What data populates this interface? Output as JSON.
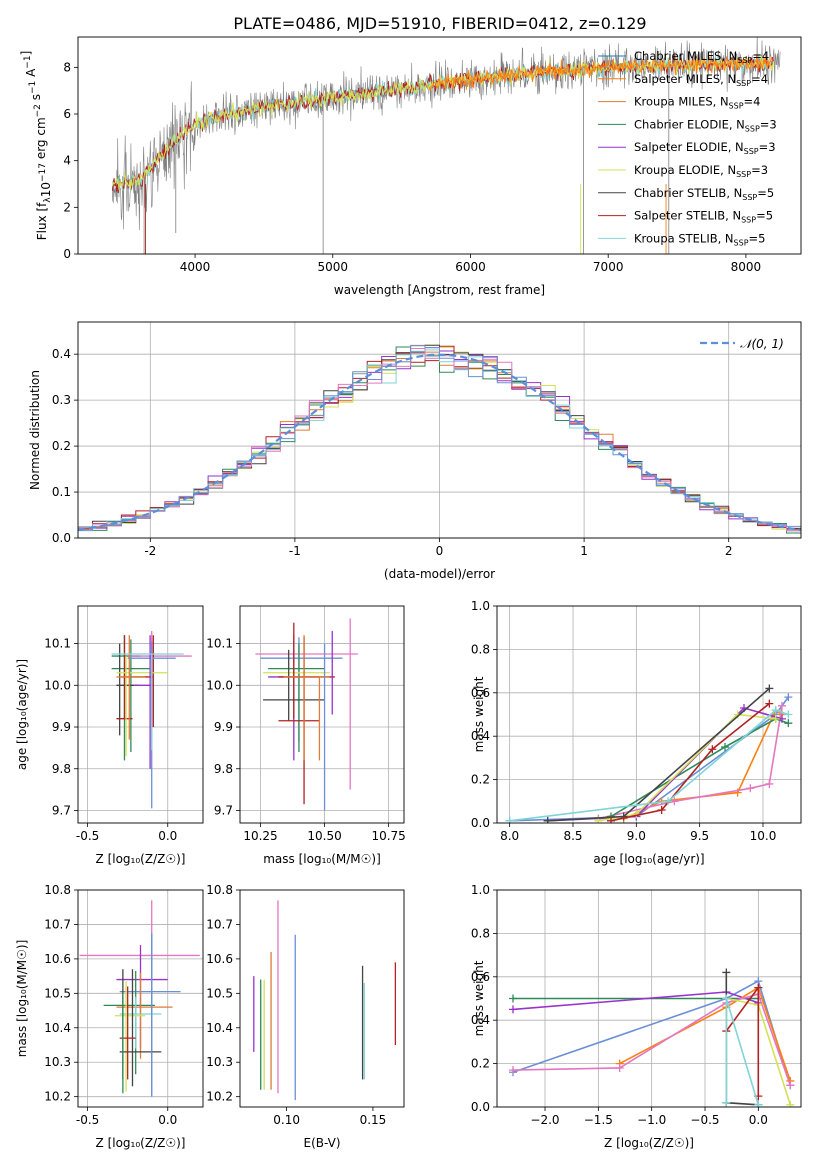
{
  "figure_title": "PLATE=0486, MJD=51910, FIBERID=0412, z=0.129",
  "colors": {
    "Chabrier MILES": "#1f77b4",
    "Salpeter MILES": "#ff7f0e",
    "Kroupa MILES": "#e07b39",
    "Chabrier ELODIE": "#2e8b57",
    "Salpeter ELODIE": "#9932cc",
    "Kroupa ELODIE": "#d4e157",
    "Chabrier STELIB": "#444444",
    "Salpeter STELIB": "#b22222",
    "Kroupa STELIB": "#7fd4d8",
    "extra_pink": "#e377c2",
    "extra_blue": "#6b8fd6",
    "data": "#808080",
    "normal": "#5b8fd9"
  },
  "chart_data": [
    {
      "id": "spectrum",
      "type": "line",
      "xlabel": "wavelength [Angstrom, rest frame]",
      "ylabel": "Flux [f_λ 10^-17 erg cm^-2 s^-1 A^-1]",
      "xlim": [
        3150,
        8400
      ],
      "ylim": [
        0,
        9.3
      ],
      "xticks": [
        4000,
        5000,
        6000,
        7000,
        8000
      ],
      "yticks": [
        0,
        2,
        4,
        6,
        8
      ],
      "legend_position": "top-right",
      "legend": [
        {
          "label": "Chabrier MILES, N_SSP=4",
          "color": "#1f77b4"
        },
        {
          "label": "Salpeter MILES, N_SSP=4",
          "color": "#ff7f0e"
        },
        {
          "label": "Kroupa MILES, N_SSP=4",
          "color": "#e07b39"
        },
        {
          "label": "Chabrier ELODIE, N_SSP=3",
          "color": "#2e8b57"
        },
        {
          "label": "Salpeter ELODIE, N_SSP=3",
          "color": "#9932cc"
        },
        {
          "label": "Kroupa ELODIE, N_SSP=3",
          "color": "#d4e157"
        },
        {
          "label": "Chabrier STELIB, N_SSP=5",
          "color": "#444444"
        },
        {
          "label": "Salpeter STELIB, N_SSP=5",
          "color": "#b22222"
        },
        {
          "label": "Kroupa STELIB, N_SSP=5",
          "color": "#7fd4d8"
        }
      ],
      "continuum": {
        "x": [
          3400,
          3600,
          3800,
          4000,
          4200,
          4500,
          5000,
          5500,
          6000,
          6500,
          7000,
          7500,
          8000,
          8200
        ],
        "y": [
          3.0,
          3.2,
          4.5,
          5.6,
          6.0,
          6.3,
          6.7,
          7.1,
          7.5,
          7.8,
          8.0,
          8.1,
          8.2,
          8.2
        ]
      }
    },
    {
      "id": "residuals",
      "type": "histogram",
      "xlabel": "(data-model)/error",
      "ylabel": "Normed distribution",
      "xlim": [
        -2.5,
        2.5
      ],
      "ylim": [
        0,
        0.47
      ],
      "xticks": [
        -2,
        -1,
        0,
        1,
        2
      ],
      "yticks": [
        0.0,
        0.1,
        0.2,
        0.3,
        0.4
      ],
      "grid": true,
      "legend_position": "top-right",
      "legend": [
        {
          "label": "𝒩(0, 1)",
          "color": "#5b8fd9",
          "style": "dashed"
        }
      ],
      "bin_width": 0.1
    },
    {
      "id": "age_vs_Z",
      "type": "errorbar",
      "xlabel": "Z [log10(Z/Z☉)]",
      "ylabel": "age  [log10(age/yr)]",
      "xlim": [
        -0.56,
        0.22
      ],
      "ylim": [
        9.67,
        10.19
      ],
      "xticks": [
        -0.5,
        0.0
      ],
      "xtick_labels": [
        "-0.5",
        "0.0"
      ],
      "yticks": [
        9.7,
        9.8,
        9.9,
        10.0,
        10.1
      ],
      "grid": true,
      "points": [
        {
          "x": -0.27,
          "xerr": [
            0.08,
            0.1
          ],
          "y": 10.07,
          "yerr": [
            0.25,
            0.05
          ],
          "color": "#2e8b57"
        },
        {
          "x": -0.23,
          "xerr": [
            0.12,
            0.12
          ],
          "y": 10.04,
          "yerr": [
            0.2,
            0.07
          ],
          "color": "#2e8b57"
        },
        {
          "x": -0.3,
          "xerr": [
            0.02,
            0.12
          ],
          "y": 10.0,
          "yerr": [
            0.12,
            0.1
          ],
          "color": "#444444"
        },
        {
          "x": -0.27,
          "xerr": [
            0.05,
            0.05
          ],
          "y": 9.92,
          "yerr": [
            0.0,
            0.2
          ],
          "color": "#b22222"
        },
        {
          "x": -0.1,
          "xerr": [
            0.14,
            0.25
          ],
          "y": 10.07,
          "yerr": [
            0.13,
            0.06
          ],
          "color": "#e377c2"
        },
        {
          "x": -0.09,
          "xerr": [
            0.2,
            0.0
          ],
          "y": 10.02,
          "yerr": [
            0.12,
            0.1
          ],
          "color": "#b22222"
        }
      ]
    },
    {
      "id": "age_vs_mass",
      "type": "errorbar",
      "xlabel": "mass [log10(M/M☉)]",
      "ylabel": "",
      "xlim": [
        10.17,
        10.81
      ],
      "ylim": [
        9.67,
        10.19
      ],
      "xticks": [
        10.25,
        10.5,
        10.75
      ],
      "xtick_labels": [
        "10.25",
        "10.50",
        "10.75"
      ],
      "yticks": [
        9.7,
        9.8,
        9.9,
        10.0,
        10.1
      ],
      "grid": true
    },
    {
      "id": "massweight_vs_age",
      "type": "line",
      "xlabel": "age  [log10(age/yr)]",
      "ylabel": "mass weight",
      "xlim": [
        7.9,
        10.3
      ],
      "ylim": [
        0,
        1
      ],
      "xticks": [
        8.0,
        8.5,
        9.0,
        9.5,
        10.0
      ],
      "xtick_labels": [
        "8.0",
        "8.5",
        "9.0",
        "9.5",
        "10.0"
      ],
      "yticks": [
        0.0,
        0.2,
        0.4,
        0.6,
        0.8,
        1.0
      ],
      "grid": true,
      "series": [
        {
          "x": [
            8.0,
            9.0,
            10.1,
            10.2
          ],
          "y": [
            0.01,
            0.03,
            0.5,
            0.58
          ],
          "color": "#6b8fd6"
        },
        {
          "x": [
            8.9,
            9.2,
            9.8,
            10.1,
            10.15
          ],
          "y": [
            0.02,
            0.1,
            0.14,
            0.52,
            0.5
          ],
          "color": "#ff7f0e"
        },
        {
          "x": [
            8.7,
            9.3,
            9.9,
            10.05,
            10.15
          ],
          "y": [
            0.02,
            0.1,
            0.16,
            0.18,
            0.54
          ],
          "color": "#e377c2"
        },
        {
          "x": [
            8.8,
            9.7,
            10.1,
            10.2
          ],
          "y": [
            0.03,
            0.35,
            0.48,
            0.46
          ],
          "color": "#2e8b57"
        },
        {
          "x": [
            8.3,
            9.0,
            9.85,
            10.15
          ],
          "y": [
            0.01,
            0.03,
            0.53,
            0.48
          ],
          "color": "#9932cc"
        },
        {
          "x": [
            8.7,
            9.0,
            9.8,
            10.1
          ],
          "y": [
            0.01,
            0.04,
            0.5,
            0.48
          ],
          "color": "#d4e157"
        },
        {
          "x": [
            8.3,
            8.9,
            10.05
          ],
          "y": [
            0.01,
            0.03,
            0.62
          ],
          "color": "#444444"
        },
        {
          "x": [
            8.8,
            9.2,
            9.6,
            10.05
          ],
          "y": [
            0.01,
            0.06,
            0.34,
            0.55
          ],
          "color": "#b22222"
        },
        {
          "x": [
            8.0,
            9.25,
            10.1,
            10.2
          ],
          "y": [
            0.01,
            0.1,
            0.52,
            0.5
          ],
          "color": "#7fd4d8"
        }
      ]
    },
    {
      "id": "mass_vs_Z",
      "type": "errorbar",
      "xlabel": "Z [log10(Z/Z☉)]",
      "ylabel": "mass [log10(M/M☉)]",
      "xlim": [
        -0.56,
        0.22
      ],
      "ylim": [
        10.17,
        10.8
      ],
      "xticks": [
        -0.5,
        0.0
      ],
      "xtick_labels": [
        "-0.5",
        "0.0"
      ],
      "yticks": [
        10.2,
        10.3,
        10.4,
        10.5,
        10.6,
        10.7,
        10.8
      ],
      "grid": true
    },
    {
      "id": "mass_vs_EBV",
      "type": "errorbar",
      "xlabel": "E(B-V)",
      "ylabel": "",
      "xlim": [
        0.073,
        0.168
      ],
      "ylim": [
        10.17,
        10.8
      ],
      "xticks": [
        0.1,
        0.15
      ],
      "xtick_labels": [
        "0.10",
        "0.15"
      ],
      "yticks": [
        10.2,
        10.3,
        10.4,
        10.5,
        10.6,
        10.7,
        10.8
      ],
      "grid": false
    },
    {
      "id": "massweight_vs_Z",
      "type": "line",
      "xlabel": "Z [log10(Z/Z☉)]",
      "ylabel": "mass weight",
      "xlim": [
        -2.45,
        0.4
      ],
      "ylim": [
        0,
        1
      ],
      "xticks": [
        -2.0,
        -1.5,
        -1.0,
        -0.5,
        0.0
      ],
      "xtick_labels": [
        "−2.0",
        "−1.5",
        "−1.0",
        "−0.5",
        "0.0"
      ],
      "yticks": [
        0.0,
        0.2,
        0.4,
        0.6,
        0.8,
        1.0
      ],
      "grid": true,
      "series": [
        {
          "x": [
            -2.3,
            -0.3,
            0.0,
            0.3
          ],
          "y": [
            0.16,
            0.5,
            0.58,
            0.1
          ],
          "color": "#6b8fd6"
        },
        {
          "x": [
            -2.3,
            -0.3,
            0.0
          ],
          "y": [
            0.5,
            0.5,
            0.5
          ],
          "color": "#2e8b57"
        },
        {
          "x": [
            -2.3,
            -0.3,
            0.0
          ],
          "y": [
            0.45,
            0.53,
            0.48
          ],
          "color": "#9932cc"
        },
        {
          "x": [
            -1.3,
            -0.3,
            0.0,
            0.3
          ],
          "y": [
            0.2,
            0.46,
            0.55,
            0.12
          ],
          "color": "#ff7f0e"
        },
        {
          "x": [
            -2.3,
            -1.3,
            -0.3,
            0.0,
            0.3
          ],
          "y": [
            0.17,
            0.18,
            0.48,
            0.52,
            0.1
          ],
          "color": "#e377c2"
        },
        {
          "x": [
            -0.3,
            -0.3,
            0.0,
            0.3
          ],
          "y": [
            0.02,
            0.5,
            0.47,
            0.01
          ],
          "color": "#d4e157"
        },
        {
          "x": [
            -0.3,
            -0.3,
            0.0
          ],
          "y": [
            0.62,
            0.02,
            0.01
          ],
          "color": "#444444"
        },
        {
          "x": [
            -0.3,
            0.0,
            0.0
          ],
          "y": [
            0.35,
            0.55,
            0.05
          ],
          "color": "#b22222"
        },
        {
          "x": [
            -0.3,
            -0.3,
            0.0
          ],
          "y": [
            0.02,
            0.5,
            0.01
          ],
          "color": "#7fd4d8"
        }
      ]
    }
  ]
}
